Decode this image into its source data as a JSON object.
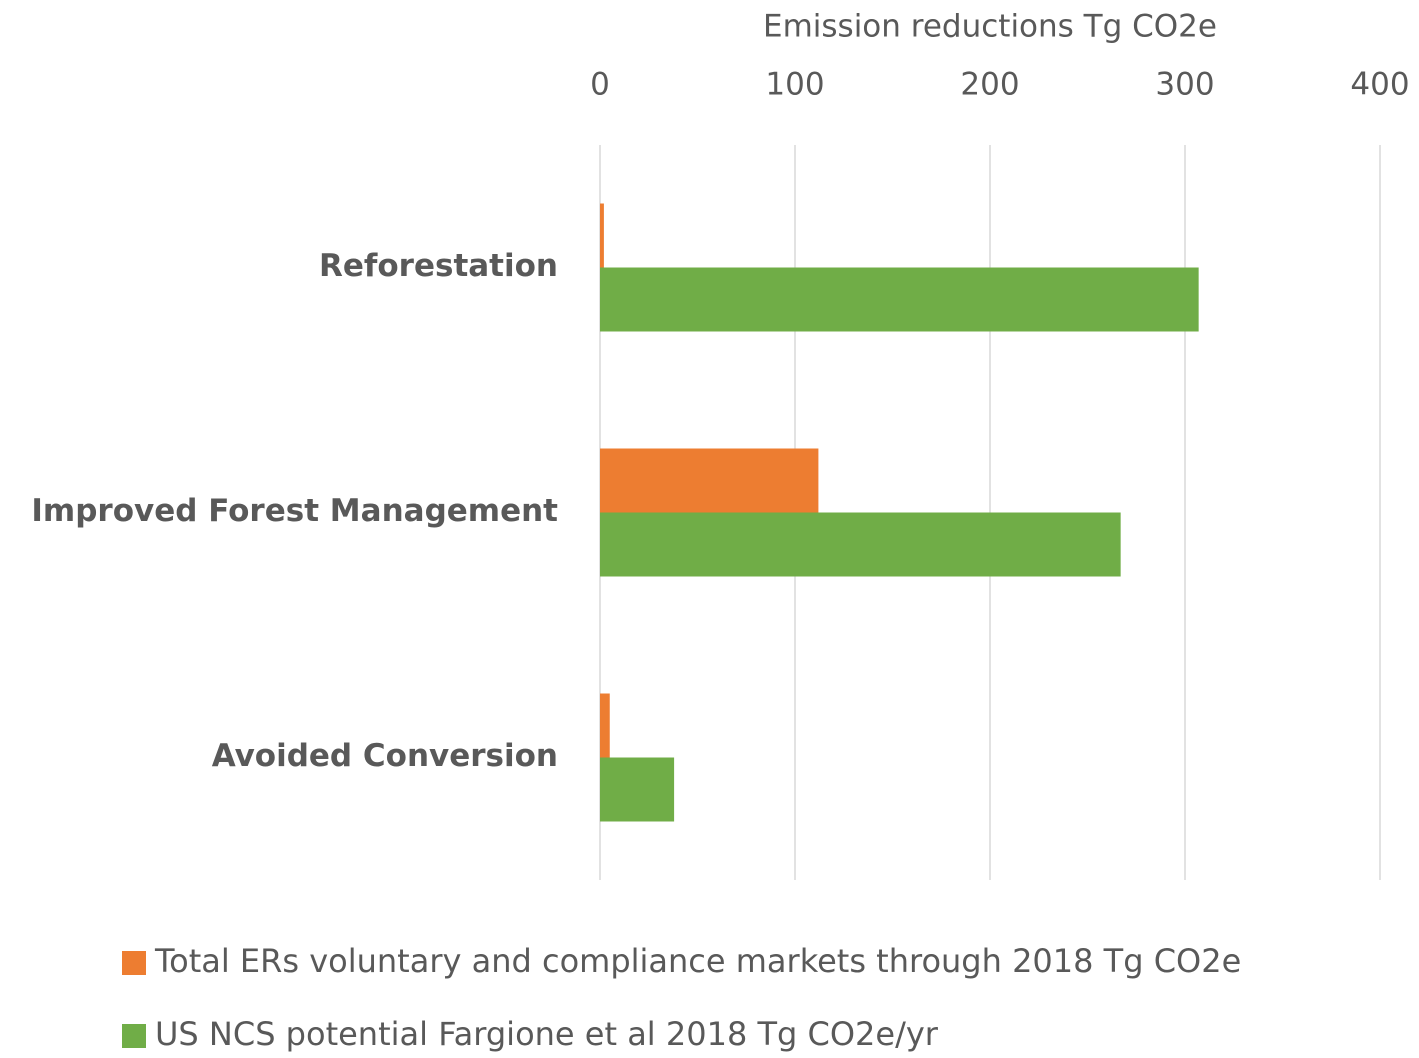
{
  "chart_data": {
    "type": "barh",
    "x_label": "Emission reductions Tg CO2e",
    "categories": [
      "Reforestation",
      "Improved Forest Management",
      "Avoided Conversion"
    ],
    "series": [
      {
        "name": "Total ERs voluntary and compliance markets through 2018 Tg CO2e",
        "color": "#ed7d31",
        "values": [
          2,
          112,
          5
        ]
      },
      {
        "name": "US NCS potential Fargione et al 2018 Tg CO2e/yr",
        "color": "#70ad47",
        "values": [
          307,
          267,
          38
        ]
      }
    ],
    "xlim": [
      0,
      400
    ],
    "xticks": [
      0,
      100,
      200,
      300,
      400
    ],
    "grid": true,
    "legend": "bottom"
  }
}
